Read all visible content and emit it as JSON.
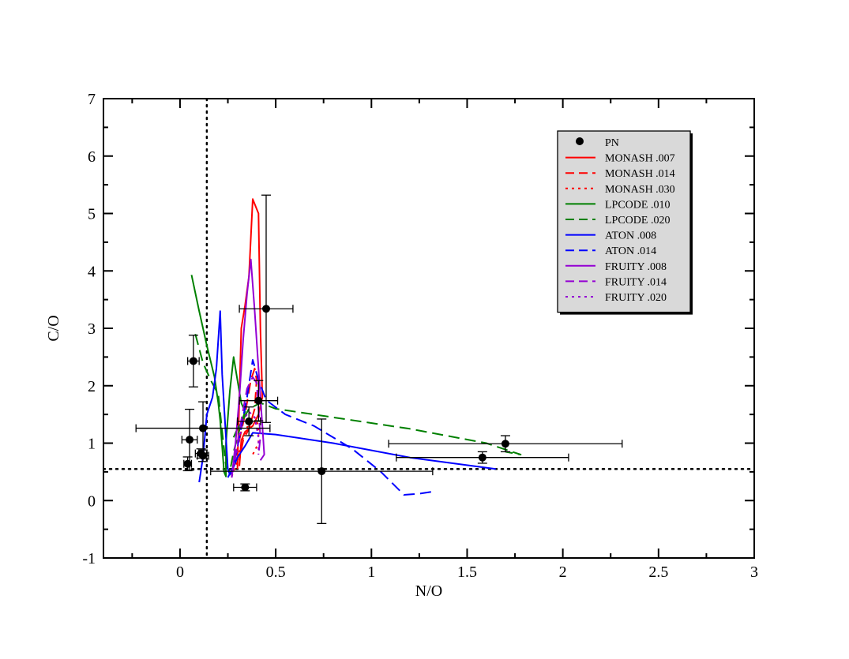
{
  "chart_data": {
    "type": "scatter",
    "title": "",
    "xlabel": "N/O",
    "ylabel": "C/O",
    "xlim": [
      -0.4,
      3.0
    ],
    "ylim": [
      -1,
      7
    ],
    "x_ticks": [
      {
        "value": 0,
        "label": "0"
      },
      {
        "value": 0.5,
        "label": "0.5"
      },
      {
        "value": 1,
        "label": "1"
      },
      {
        "value": 1.5,
        "label": "1.5"
      },
      {
        "value": 2,
        "label": "2"
      },
      {
        "value": 2.5,
        "label": "2.5"
      },
      {
        "value": 3,
        "label": "3"
      }
    ],
    "y_ticks": [
      {
        "value": -1,
        "label": "-1"
      },
      {
        "value": 0,
        "label": "0"
      },
      {
        "value": 1,
        "label": "1"
      },
      {
        "value": 2,
        "label": "2"
      },
      {
        "value": 3,
        "label": "3"
      },
      {
        "value": 4,
        "label": "4"
      },
      {
        "value": 5,
        "label": "5"
      },
      {
        "value": 6,
        "label": "6"
      },
      {
        "value": 7,
        "label": "7"
      }
    ],
    "grid": false,
    "legend_position": "top-right",
    "reference_lines": [
      {
        "orientation": "vertical",
        "value": 0.14,
        "style": "dotted",
        "color": "#000000"
      },
      {
        "orientation": "horizontal",
        "value": 0.55,
        "style": "dotted",
        "color": "#000000"
      }
    ],
    "series": [
      {
        "name": "PN",
        "kind": "points",
        "color": "#000000",
        "points": [
          {
            "x": 0.07,
            "y": 2.43,
            "xerr": 0.03,
            "yerr": 0.45
          },
          {
            "x": 0.05,
            "y": 1.06,
            "xerr": 0.04,
            "yerr": 0.53
          },
          {
            "x": 0.12,
            "y": 1.26,
            "xerr": 0.35,
            "yerr": 0.46
          },
          {
            "x": 0.04,
            "y": 0.64,
            "xerr": 0.02,
            "yerr": 0.12
          },
          {
            "x": 0.11,
            "y": 0.82,
            "xerr": 0.03,
            "yerr": 0.08
          },
          {
            "x": 0.12,
            "y": 0.78,
            "xerr": 0.03,
            "yerr": 0.1
          },
          {
            "x": 0.45,
            "y": 3.34,
            "xerr": 0.14,
            "yerr": 1.98
          },
          {
            "x": 0.41,
            "y": 1.74,
            "xerr": 0.1,
            "yerr": 0.35
          },
          {
            "x": 0.36,
            "y": 1.38,
            "xerr": 0.06,
            "yerr": 0.25
          },
          {
            "x": 0.34,
            "y": 0.23,
            "xerr": 0.06,
            "yerr": 0.06
          },
          {
            "x": 0.74,
            "y": 0.51,
            "xerr": 0.58,
            "yerr": 0.91
          },
          {
            "x": 1.58,
            "y": 0.75,
            "xerr": 0.45,
            "yerr": 0.1
          },
          {
            "x": 1.7,
            "y": 0.99,
            "xerr": 0.61,
            "yerr": 0.14
          }
        ]
      },
      {
        "name": "MONASH .007",
        "kind": "line",
        "color": "#ff0000",
        "dash": "solid",
        "points": [
          [
            0.3,
            0.55
          ],
          [
            0.32,
            3.0
          ],
          [
            0.34,
            3.4
          ],
          [
            0.36,
            3.9
          ],
          [
            0.38,
            5.25
          ],
          [
            0.41,
            5.0
          ],
          [
            0.42,
            3.0
          ],
          [
            0.43,
            1.8
          ],
          [
            0.41,
            1.5
          ],
          [
            0.38,
            1.3
          ],
          [
            0.34,
            1.2
          ],
          [
            0.32,
            1.05
          ],
          [
            0.31,
            0.6
          ]
        ]
      },
      {
        "name": "MONASH .014",
        "kind": "line",
        "color": "#ff0000",
        "dash": "dashed",
        "points": [
          [
            0.27,
            0.45
          ],
          [
            0.3,
            0.9
          ],
          [
            0.34,
            1.5
          ],
          [
            0.37,
            2.1
          ],
          [
            0.39,
            2.3
          ],
          [
            0.4,
            2.1
          ],
          [
            0.39,
            1.6
          ],
          [
            0.36,
            1.25
          ],
          [
            0.33,
            1.05
          ],
          [
            0.31,
            0.7
          ]
        ]
      },
      {
        "name": "MONASH .030",
        "kind": "line",
        "color": "#ff0000",
        "dash": "dotted",
        "points": [
          [
            0.27,
            0.42
          ],
          [
            0.3,
            0.7
          ],
          [
            0.33,
            1.1
          ],
          [
            0.36,
            1.35
          ],
          [
            0.39,
            1.45
          ],
          [
            0.41,
            1.3
          ],
          [
            0.41,
            1.0
          ],
          [
            0.38,
            0.8
          ]
        ]
      },
      {
        "name": "LPCODE .010",
        "kind": "line",
        "color": "#008000",
        "dash": "solid",
        "points": [
          [
            0.06,
            3.93
          ],
          [
            0.1,
            3.3
          ],
          [
            0.14,
            2.7
          ],
          [
            0.18,
            2.15
          ],
          [
            0.2,
            1.7
          ],
          [
            0.21,
            1.4
          ],
          [
            0.23,
            0.5
          ],
          [
            0.24,
            0.42
          ],
          [
            0.24,
            1.0
          ],
          [
            0.26,
            1.9
          ],
          [
            0.28,
            2.5
          ],
          [
            0.3,
            2.1
          ],
          [
            0.32,
            1.7
          ],
          [
            0.34,
            1.55
          ],
          [
            0.32,
            1.35
          ],
          [
            0.3,
            1.25
          ],
          [
            0.28,
            1.1
          ]
        ]
      },
      {
        "name": "LPCODE .020",
        "kind": "line",
        "color": "#008000",
        "dash": "dashed",
        "points": [
          [
            0.08,
            2.9
          ],
          [
            0.12,
            2.4
          ],
          [
            0.16,
            2.1
          ],
          [
            0.2,
            1.85
          ],
          [
            0.22,
            1.2
          ],
          [
            0.24,
            0.6
          ],
          [
            0.26,
            0.5
          ],
          [
            0.28,
            0.85
          ],
          [
            0.32,
            1.35
          ],
          [
            0.36,
            1.6
          ],
          [
            0.42,
            1.7
          ],
          [
            0.5,
            1.6
          ],
          [
            0.8,
            1.45
          ],
          [
            1.2,
            1.25
          ],
          [
            1.6,
            1.0
          ],
          [
            1.78,
            0.8
          ],
          [
            1.7,
            0.85
          ]
        ]
      },
      {
        "name": "ATON .008",
        "kind": "line",
        "color": "#0000ff",
        "dash": "solid",
        "points": [
          [
            0.1,
            0.32
          ],
          [
            0.12,
            0.75
          ],
          [
            0.14,
            1.5
          ],
          [
            0.17,
            1.8
          ],
          [
            0.19,
            2.3
          ],
          [
            0.21,
            3.3
          ],
          [
            0.22,
            2.2
          ],
          [
            0.25,
            0.55
          ],
          [
            0.26,
            0.45
          ],
          [
            0.27,
            0.5
          ],
          [
            0.3,
            0.75
          ],
          [
            0.34,
            0.95
          ],
          [
            0.38,
            1.18
          ],
          [
            0.5,
            1.15
          ],
          [
            0.8,
            1.0
          ],
          [
            1.2,
            0.75
          ],
          [
            1.65,
            0.55
          ]
        ]
      },
      {
        "name": "ATON .014",
        "kind": "line",
        "color": "#0000ff",
        "dash": "dashed",
        "points": [
          [
            0.25,
            0.4
          ],
          [
            0.28,
            0.6
          ],
          [
            0.31,
            1.1
          ],
          [
            0.35,
            1.8
          ],
          [
            0.38,
            2.45
          ],
          [
            0.41,
            2.1
          ],
          [
            0.45,
            1.75
          ],
          [
            0.55,
            1.5
          ],
          [
            0.7,
            1.3
          ],
          [
            0.9,
            0.9
          ],
          [
            1.05,
            0.5
          ],
          [
            1.17,
            0.1
          ],
          [
            1.25,
            0.12
          ],
          [
            1.33,
            0.16
          ]
        ]
      },
      {
        "name": "FRUITY .008",
        "kind": "line",
        "color": "#9400d3",
        "dash": "solid",
        "points": [
          [
            0.27,
            0.4
          ],
          [
            0.29,
            1.0
          ],
          [
            0.31,
            1.8
          ],
          [
            0.33,
            2.8
          ],
          [
            0.35,
            3.6
          ],
          [
            0.37,
            4.2
          ],
          [
            0.39,
            3.3
          ],
          [
            0.41,
            2.3
          ],
          [
            0.43,
            1.3
          ],
          [
            0.44,
            0.8
          ],
          [
            0.42,
            0.7
          ]
        ]
      },
      {
        "name": "FRUITY .014",
        "kind": "line",
        "color": "#9400d3",
        "dash": "dashed",
        "points": [
          [
            0.27,
            0.42
          ],
          [
            0.29,
            0.8
          ],
          [
            0.32,
            1.4
          ],
          [
            0.35,
            1.95
          ],
          [
            0.38,
            2.15
          ],
          [
            0.4,
            2.05
          ],
          [
            0.41,
            1.6
          ],
          [
            0.42,
            1.1
          ],
          [
            0.41,
            0.8
          ]
        ]
      },
      {
        "name": "FRUITY .020",
        "kind": "line",
        "color": "#9400d3",
        "dash": "dotted",
        "points": [
          [
            0.27,
            0.4
          ],
          [
            0.3,
            0.9
          ],
          [
            0.33,
            1.4
          ],
          [
            0.36,
            1.55
          ],
          [
            0.39,
            1.45
          ],
          [
            0.41,
            1.1
          ],
          [
            0.41,
            0.8
          ]
        ]
      }
    ]
  }
}
